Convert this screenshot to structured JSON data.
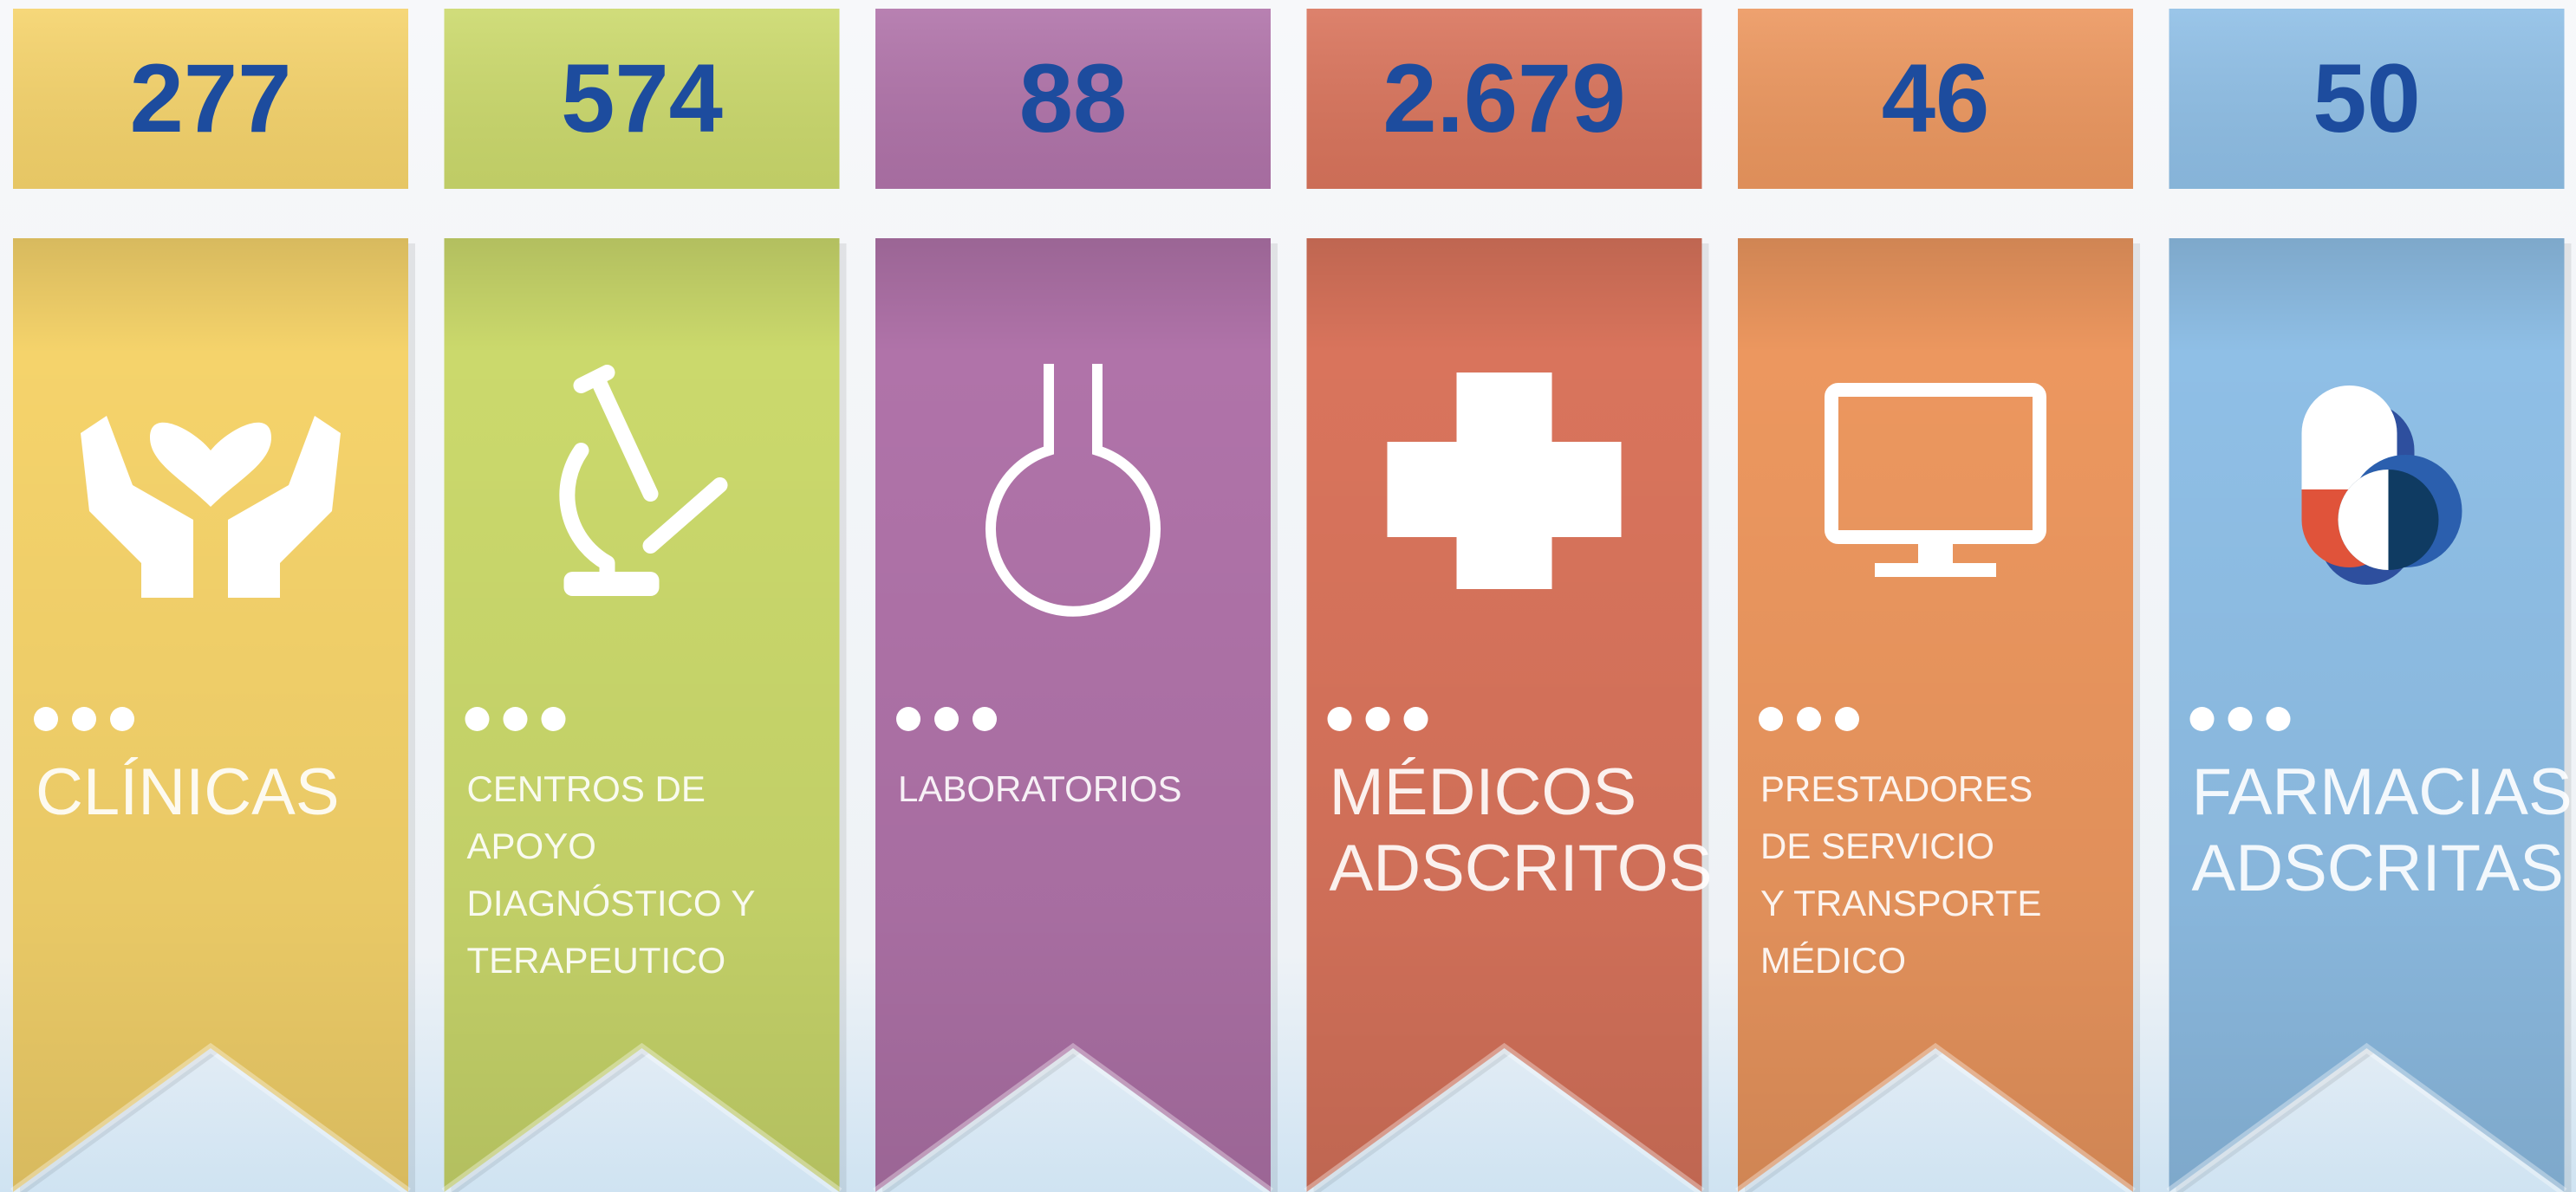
{
  "items": [
    {
      "value": "277",
      "label": [
        "CLÍNICAS"
      ],
      "color": "#f5d36b"
    },
    {
      "value": "574",
      "label": [
        "CENTROS DE",
        "APOYO",
        "DIAGNÓSTICO Y",
        "TERAPEUTICO"
      ],
      "color": "#cbd96c"
    },
    {
      "value": "88",
      "label": [
        "LABORATORIOS"
      ],
      "color": "#b073a9"
    },
    {
      "value": "2.679",
      "label": [
        "MÉDICOS",
        "ADSCRITOS"
      ],
      "color": "#d9745c"
    },
    {
      "value": "46",
      "label": [
        "PRESTADORES",
        "DE SERVICIO",
        "Y TRANSPORTE",
        "MÉDICO"
      ],
      "color": "#ec975f"
    },
    {
      "value": "50",
      "label": [
        "FARMACIAS",
        "ADSCRITAS"
      ],
      "color": "#8fbfe6"
    }
  ]
}
